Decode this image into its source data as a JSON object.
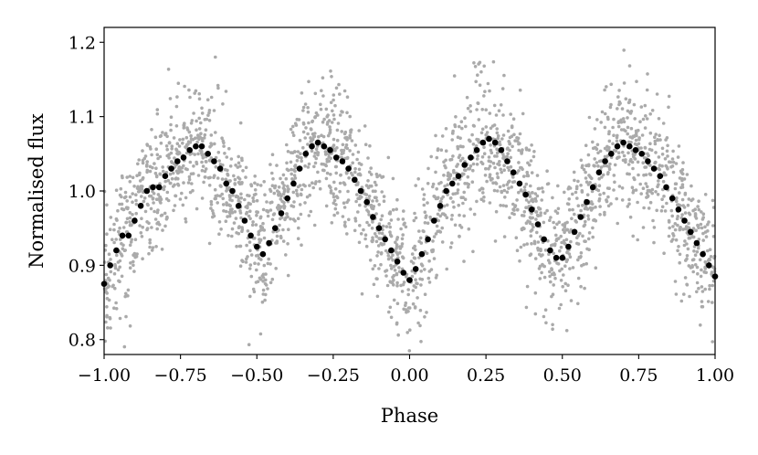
{
  "chart_data": {
    "type": "scatter",
    "title": "",
    "xlabel": "Phase",
    "ylabel": "Normalised flux",
    "xlim": [
      -1.0,
      1.0
    ],
    "ylim": [
      0.78,
      1.22
    ],
    "xticks": [
      -1.0,
      -0.75,
      -0.5,
      -0.25,
      0.0,
      0.25,
      0.5,
      0.75,
      1.0
    ],
    "xtick_labels": [
      "−1.00",
      "−0.75",
      "−0.50",
      "−0.25",
      "0.00",
      "0.25",
      "0.50",
      "0.75",
      "1.00"
    ],
    "yticks": [
      0.8,
      0.9,
      1.0,
      1.1,
      1.2
    ],
    "ytick_labels": [
      "0.8",
      "0.9",
      "1.0",
      "1.1",
      "1.2"
    ],
    "grid": false,
    "legend": "none",
    "series": [
      {
        "role": "unbinned",
        "color": "#aaaaaa",
        "marker": "small dot",
        "count": 2600,
        "x_range": [
          -1.0,
          1.0
        ],
        "scatter_sigma": 0.045,
        "note": "dense cloud of individual measurements folded on phase, following the same double-humped curve as the binned series"
      },
      {
        "role": "binned",
        "color": "#000000",
        "marker": "dot",
        "x": [
          -1.0,
          -0.98,
          -0.96,
          -0.94,
          -0.92,
          -0.9,
          -0.88,
          -0.86,
          -0.84,
          -0.82,
          -0.8,
          -0.78,
          -0.76,
          -0.74,
          -0.72,
          -0.7,
          -0.68,
          -0.66,
          -0.64,
          -0.62,
          -0.6,
          -0.58,
          -0.56,
          -0.54,
          -0.52,
          -0.5,
          -0.48,
          -0.46,
          -0.44,
          -0.42,
          -0.4,
          -0.38,
          -0.36,
          -0.34,
          -0.32,
          -0.3,
          -0.28,
          -0.26,
          -0.24,
          -0.22,
          -0.2,
          -0.18,
          -0.16,
          -0.14,
          -0.12,
          -0.1,
          -0.08,
          -0.06,
          -0.04,
          -0.02,
          0.0,
          0.02,
          0.04,
          0.06,
          0.08,
          0.1,
          0.12,
          0.14,
          0.16,
          0.18,
          0.2,
          0.22,
          0.24,
          0.26,
          0.28,
          0.3,
          0.32,
          0.34,
          0.36,
          0.38,
          0.4,
          0.42,
          0.44,
          0.46,
          0.48,
          0.5,
          0.52,
          0.54,
          0.56,
          0.58,
          0.6,
          0.62,
          0.64,
          0.66,
          0.68,
          0.7,
          0.72,
          0.74,
          0.76,
          0.78,
          0.8,
          0.82,
          0.84,
          0.86,
          0.88,
          0.9,
          0.92,
          0.94,
          0.96,
          0.98,
          1.0
        ],
        "y": [
          0.875,
          0.9,
          0.92,
          0.94,
          0.94,
          0.96,
          0.98,
          1.0,
          1.005,
          1.005,
          1.02,
          1.03,
          1.04,
          1.045,
          1.055,
          1.06,
          1.06,
          1.05,
          1.04,
          1.03,
          1.01,
          1.0,
          0.98,
          0.96,
          0.94,
          0.925,
          0.915,
          0.93,
          0.95,
          0.97,
          0.99,
          1.01,
          1.03,
          1.05,
          1.06,
          1.065,
          1.06,
          1.055,
          1.045,
          1.04,
          1.03,
          1.015,
          1.0,
          0.985,
          0.965,
          0.95,
          0.935,
          0.92,
          0.905,
          0.89,
          0.88,
          0.895,
          0.915,
          0.935,
          0.96,
          0.98,
          1.0,
          1.01,
          1.02,
          1.035,
          1.045,
          1.055,
          1.065,
          1.07,
          1.065,
          1.055,
          1.04,
          1.025,
          1.01,
          0.995,
          0.975,
          0.955,
          0.935,
          0.92,
          0.91,
          0.91,
          0.925,
          0.945,
          0.965,
          0.985,
          1.005,
          1.025,
          1.04,
          1.05,
          1.06,
          1.065,
          1.06,
          1.055,
          1.05,
          1.04,
          1.03,
          1.02,
          1.005,
          0.99,
          0.975,
          0.96,
          0.945,
          0.93,
          0.915,
          0.9,
          0.885
        ]
      }
    ]
  }
}
